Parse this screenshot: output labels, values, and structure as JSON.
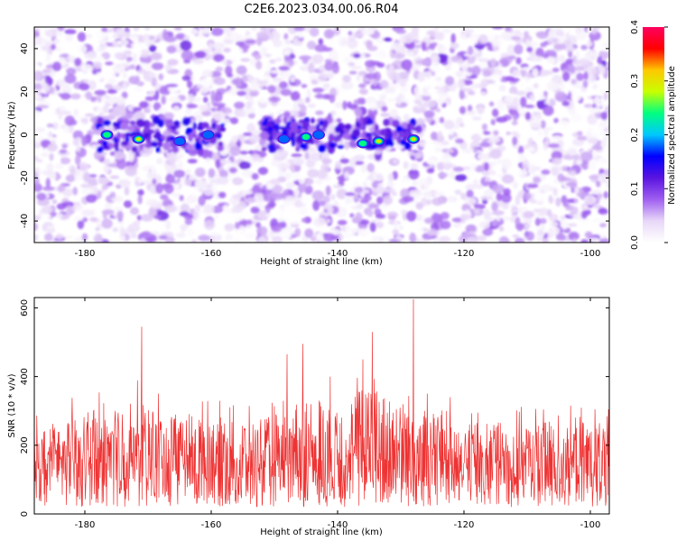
{
  "title": "C2E6.2023.034.00.06.R04",
  "chart_data": [
    {
      "type": "heatmap",
      "xlabel": "Height of straight line (km)",
      "ylabel": "Frequency (Hz)",
      "xlim": [
        -188,
        -97
      ],
      "ylim": [
        -50,
        50
      ],
      "x_ticks": [
        -180,
        -160,
        -140,
        -120,
        -100
      ],
      "x_tick_labels": [
        "-180",
        "-160",
        "-140",
        "-120",
        "-100"
      ],
      "y_ticks": [
        -40,
        -20,
        0,
        20,
        40
      ],
      "y_tick_labels": [
        "-40",
        "-20",
        "0",
        "20",
        "40"
      ],
      "colorbar": {
        "label": "Normalized spectral amplitude",
        "range": [
          0,
          0.4
        ],
        "ticks": [
          0,
          0.1,
          0.2,
          0.3,
          0.4
        ],
        "tick_labels": [
          "0.0",
          "0.1",
          "0.2",
          "0.3",
          "0.4"
        ],
        "colors": [
          "#ffffff",
          "#e8d8f8",
          "#9f5ff0",
          "#5a14e0",
          "#0000ff",
          "#00c8ff",
          "#00ff80",
          "#c8ff00",
          "#ffc800",
          "#ff0000",
          "#ff0060"
        ]
      },
      "hotspots": [
        {
          "x": -176.5,
          "y": 0,
          "amp": 0.27
        },
        {
          "x": -171.5,
          "y": -2,
          "amp": 0.3
        },
        {
          "x": -165,
          "y": -3,
          "amp": 0.2
        },
        {
          "x": -160.5,
          "y": 0,
          "amp": 0.18
        },
        {
          "x": -148.5,
          "y": -2,
          "amp": 0.22
        },
        {
          "x": -145,
          "y": -1,
          "amp": 0.25
        },
        {
          "x": -143,
          "y": 0,
          "amp": 0.22
        },
        {
          "x": -136,
          "y": -4,
          "amp": 0.27
        },
        {
          "x": -133.5,
          "y": -3,
          "amp": 0.32
        },
        {
          "x": -128,
          "y": -2,
          "amp": 0.35
        }
      ]
    },
    {
      "type": "line",
      "xlabel": "Height of straight line (km)",
      "ylabel": "SNR (10 * v/v)",
      "xlim": [
        -188,
        -97
      ],
      "ylim": [
        0,
        630
      ],
      "x_ticks": [
        -180,
        -160,
        -140,
        -120,
        -100
      ],
      "x_tick_labels": [
        "-180",
        "-160",
        "-140",
        "-120",
        "-100"
      ],
      "y_ticks": [
        0,
        200,
        400,
        600
      ],
      "y_tick_labels": [
        "0",
        "200",
        "400",
        "600"
      ],
      "line_color": "#ee3333",
      "series": [
        {
          "x": [
            -188,
            -184,
            -180,
            -176,
            -172,
            -168,
            -164,
            -160,
            -156,
            -152,
            -148,
            -144,
            -140,
            -136,
            -132,
            -128,
            -124,
            -120,
            -116,
            -112,
            -108,
            -104,
            -100,
            -97
          ],
          "median": [
            150,
            160,
            155,
            165,
            160,
            150,
            155,
            150,
            145,
            150,
            160,
            165,
            160,
            180,
            185,
            170,
            165,
            155,
            150,
            150,
            150,
            145,
            150,
            150
          ],
          "upper": [
            300,
            330,
            350,
            390,
            400,
            360,
            340,
            350,
            320,
            330,
            370,
            420,
            400,
            460,
            420,
            380,
            350,
            330,
            320,
            310,
            320,
            320,
            320,
            320
          ],
          "peaks": [
            {
              "x": -171,
              "y": 545
            },
            {
              "x": -145.5,
              "y": 495
            },
            {
              "x": -148,
              "y": 465
            },
            {
              "x": -134.5,
              "y": 530
            },
            {
              "x": -128,
              "y": 625
            },
            {
              "x": -136,
              "y": 450
            }
          ]
        }
      ]
    }
  ]
}
